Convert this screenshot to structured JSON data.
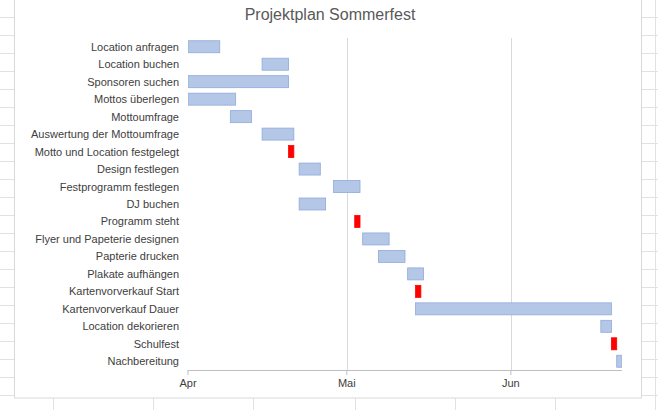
{
  "chart_data": {
    "type": "gantt",
    "title": "Projektplan Sommerfest",
    "orientation": "horizontal",
    "stacked": true,
    "grid": true,
    "categories": [
      "Location anfragen",
      "Location buchen",
      "Sponsoren suchen",
      "Mottos überlegen",
      "Mottoumfrage",
      "Auswertung der Mottoumfrage",
      "Motto und Location festgelegt",
      "Design festlegen",
      "Festprogramm festlegen",
      "DJ buchen",
      "Programm steht",
      "Flyer und Papeterie designen",
      "Papterie drucken",
      "Plakate aufhängen",
      "Kartenvorverkauf Start",
      "Kartenvorverkauf Dauer",
      "Location dekorieren",
      "Schulfest",
      "Nachbereitung"
    ],
    "start": [
      0,
      14,
      0,
      0,
      8,
      14,
      19,
      21,
      27.5,
      21,
      31.5,
      33,
      36,
      41.5,
      43,
      43,
      78,
      80,
      81
    ],
    "values": [
      6,
      5,
      19,
      9,
      4,
      6,
      1,
      4,
      5,
      5,
      1,
      5,
      5,
      3,
      1,
      37,
      2,
      1,
      1
    ],
    "colors": [
      "#b4c7e7",
      "#b4c7e7",
      "#b4c7e7",
      "#b4c7e7",
      "#b4c7e7",
      "#b4c7e7",
      "#ff0000",
      "#b4c7e7",
      "#b4c7e7",
      "#b4c7e7",
      "#ff0000",
      "#b4c7e7",
      "#b4c7e7",
      "#b4c7e7",
      "#ff0000",
      "#b4c7e7",
      "#b4c7e7",
      "#ff0000",
      "#b4c7e7"
    ],
    "xlim": [
      0,
      82
    ],
    "xticks": [
      {
        "value": 0,
        "label": "Apr"
      },
      {
        "value": 30,
        "label": "Mai"
      },
      {
        "value": 61,
        "label": "Jun"
      }
    ]
  }
}
